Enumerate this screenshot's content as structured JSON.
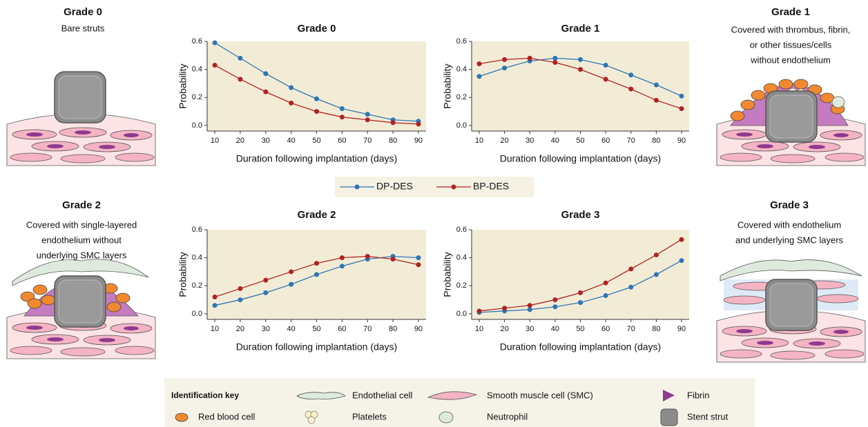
{
  "chart_data": [
    {
      "type": "line",
      "title": "Grade 0",
      "xlabel": "Duration following implantation (days)",
      "ylabel": "Probability",
      "x": [
        10,
        20,
        30,
        40,
        50,
        60,
        70,
        80,
        90
      ],
      "xlim": [
        7,
        93
      ],
      "xticks": [
        10,
        20,
        30,
        40,
        50,
        60,
        70,
        80,
        90
      ],
      "ylim": [
        -0.04,
        0.6
      ],
      "yticks": [
        {
          "value": 0,
          "label": "0.0"
        },
        0.2,
        0.4,
        0.6
      ],
      "series": [
        {
          "name": "DP-DES",
          "color": "#2e75b6",
          "values": [
            0.59,
            0.48,
            0.37,
            0.27,
            0.19,
            0.12,
            0.08,
            0.04,
            0.03
          ]
        },
        {
          "name": "BP-DES",
          "color": "#b22222",
          "values": [
            0.43,
            0.33,
            0.24,
            0.16,
            0.1,
            0.06,
            0.04,
            0.02,
            0.01
          ]
        }
      ]
    },
    {
      "type": "line",
      "title": "Grade 1",
      "xlabel": "Duration following implantation (days)",
      "ylabel": "Probability",
      "x": [
        10,
        20,
        30,
        40,
        50,
        60,
        70,
        80,
        90
      ],
      "xlim": [
        7,
        93
      ],
      "xticks": [
        10,
        20,
        30,
        40,
        50,
        60,
        70,
        80,
        90
      ],
      "ylim": [
        -0.04,
        0.6
      ],
      "yticks": [
        {
          "value": 0,
          "label": "0.0"
        },
        0.2,
        0.4,
        0.6
      ],
      "series": [
        {
          "name": "DP-DES",
          "color": "#2e75b6",
          "values": [
            0.35,
            0.41,
            0.46,
            0.48,
            0.47,
            0.43,
            0.36,
            0.29,
            0.21
          ]
        },
        {
          "name": "BP-DES",
          "color": "#b22222",
          "values": [
            0.44,
            0.47,
            0.48,
            0.45,
            0.4,
            0.33,
            0.26,
            0.18,
            0.12
          ]
        }
      ]
    },
    {
      "type": "line",
      "title": "Grade 2",
      "xlabel": "Duration following implantation (days)",
      "ylabel": "Probability",
      "x": [
        10,
        20,
        30,
        40,
        50,
        60,
        70,
        80,
        90
      ],
      "xlim": [
        7,
        93
      ],
      "xticks": [
        10,
        20,
        30,
        40,
        50,
        60,
        70,
        80,
        90
      ],
      "ylim": [
        -0.04,
        0.6
      ],
      "yticks": [
        {
          "value": 0,
          "label": "0.0"
        },
        0.2,
        0.4,
        0.6
      ],
      "series": [
        {
          "name": "DP-DES",
          "color": "#2e75b6",
          "values": [
            0.06,
            0.1,
            0.15,
            0.21,
            0.28,
            0.34,
            0.39,
            0.41,
            0.4
          ]
        },
        {
          "name": "BP-DES",
          "color": "#b22222",
          "values": [
            0.12,
            0.18,
            0.24,
            0.3,
            0.36,
            0.4,
            0.41,
            0.39,
            0.35
          ]
        }
      ]
    },
    {
      "type": "line",
      "title": "Grade 3",
      "xlabel": "Duration following implantation (days)",
      "ylabel": "Probability",
      "x": [
        10,
        20,
        30,
        40,
        50,
        60,
        70,
        80,
        90
      ],
      "xlim": [
        7,
        93
      ],
      "xticks": [
        10,
        20,
        30,
        40,
        50,
        60,
        70,
        80,
        90
      ],
      "ylim": [
        -0.04,
        0.6
      ],
      "yticks": [
        {
          "value": 0,
          "label": "0.0"
        },
        0.2,
        0.4,
        0.6
      ],
      "series": [
        {
          "name": "DP-DES",
          "color": "#2e75b6",
          "values": [
            0.01,
            0.02,
            0.03,
            0.05,
            0.08,
            0.13,
            0.19,
            0.28,
            0.38
          ]
        },
        {
          "name": "BP-DES",
          "color": "#b22222",
          "values": [
            0.02,
            0.04,
            0.06,
            0.1,
            0.15,
            0.22,
            0.32,
            0.42,
            0.53
          ]
        }
      ]
    }
  ],
  "illustrations": [
    {
      "title": "Grade 0",
      "caption": [
        "Bare struts"
      ]
    },
    {
      "title": "Grade 1",
      "caption": [
        "Covered with thrombus, fibrin,",
        "or other tissues/cells",
        "without endothelium"
      ]
    },
    {
      "title": "Grade 2",
      "caption": [
        "Covered with single-layered",
        "endothelium without",
        "underlying SMC layers"
      ]
    },
    {
      "title": "Grade 3",
      "caption": [
        "Covered with endothelium",
        "and underlying SMC layers"
      ]
    }
  ],
  "key": {
    "title": "Identification key",
    "items": [
      "Endothelial cell",
      "Smooth muscle cell (SMC)",
      "Fibrin",
      "Red blood cell",
      "Platelets",
      "Neutrophil",
      "Stent strut"
    ]
  }
}
